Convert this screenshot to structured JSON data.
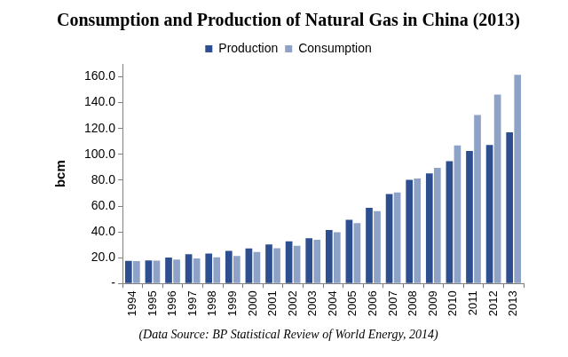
{
  "chart_data": {
    "type": "bar",
    "title": "Consumption and Production of Natural Gas in China (2013)",
    "subtitle": "(Data Source: BP Statistical Review of World Energy, 2014)",
    "y_label": "bcm",
    "categories": [
      "1994",
      "1995",
      "1996",
      "1997",
      "1998",
      "1999",
      "2000",
      "2001",
      "2002",
      "2003",
      "2004",
      "2005",
      "2006",
      "2007",
      "2008",
      "2009",
      "2010",
      "2011",
      "2012",
      "2013"
    ],
    "series": [
      {
        "name": "Production",
        "color": "#2e4f8f",
        "values": [
          17.6,
          17.9,
          20.1,
          22.7,
          23.3,
          25.2,
          27.2,
          30.3,
          32.7,
          35.0,
          41.5,
          49.3,
          58.6,
          69.2,
          80.3,
          85.3,
          94.8,
          102.7,
          107.2,
          117.1
        ]
      },
      {
        "name": "Consumption",
        "color": "#8da2c6",
        "values": [
          17.4,
          17.7,
          18.5,
          19.5,
          20.3,
          21.4,
          24.5,
          27.4,
          29.2,
          33.9,
          39.7,
          46.8,
          56.1,
          70.5,
          81.3,
          89.5,
          106.9,
          130.5,
          146.3,
          161.6
        ]
      }
    ],
    "ylim": [
      0,
      170
    ],
    "yticks": [
      {
        "value": 0,
        "label": "-"
      },
      {
        "value": 20,
        "label": "20.0"
      },
      {
        "value": 40,
        "label": "40.0"
      },
      {
        "value": 60,
        "label": "60.0"
      },
      {
        "value": 80,
        "label": "80.0"
      },
      {
        "value": 100,
        "label": "100.0"
      },
      {
        "value": 120,
        "label": "120.0"
      },
      {
        "value": 140,
        "label": "140.0"
      },
      {
        "value": 160,
        "label": "160.0"
      }
    ],
    "grid": false,
    "legend": "top"
  }
}
